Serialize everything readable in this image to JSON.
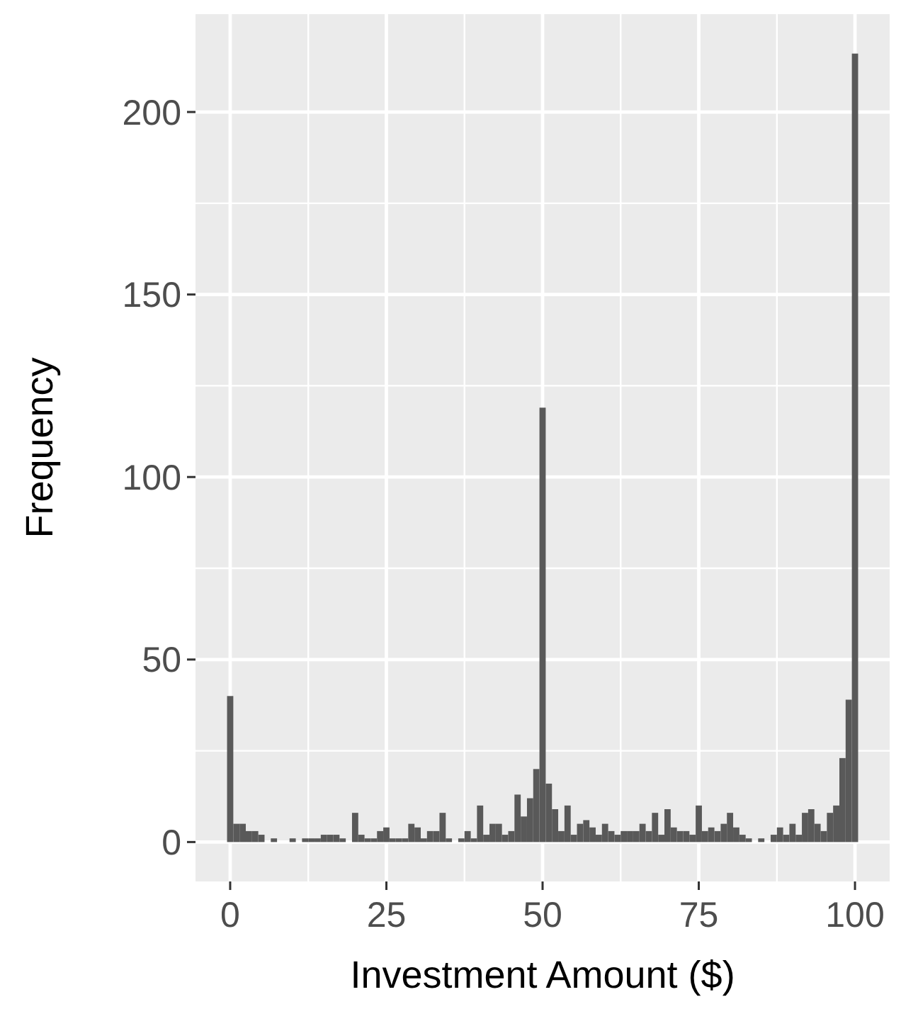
{
  "chart_data": {
    "type": "histogram",
    "xlabel": "Investment Amount ($)",
    "ylabel": "Frequency",
    "bins": [
      -0.5,
      0.5,
      1.5,
      2.5,
      3.5,
      4.5,
      5.5,
      6.5,
      7.5,
      8.5,
      9.5,
      10.5,
      11.5,
      12.5,
      13.5,
      14.5,
      15.5,
      16.5,
      17.5,
      18.5,
      19.5,
      20.5,
      21.5,
      22.5,
      23.5,
      24.5,
      25.5,
      26.5,
      27.5,
      28.5,
      29.5,
      30.5,
      31.5,
      32.5,
      33.5,
      34.5,
      35.5,
      36.5,
      37.5,
      38.5,
      39.5,
      40.5,
      41.5,
      42.5,
      43.5,
      44.5,
      45.5,
      46.5,
      47.5,
      48.5,
      49.5,
      50.5,
      51.5,
      52.5,
      53.5,
      54.5,
      55.5,
      56.5,
      57.5,
      58.5,
      59.5,
      60.5,
      61.5,
      62.5,
      63.5,
      64.5,
      65.5,
      66.5,
      67.5,
      68.5,
      69.5,
      70.5,
      71.5,
      72.5,
      73.5,
      74.5,
      75.5,
      76.5,
      77.5,
      78.5,
      79.5,
      80.5,
      81.5,
      82.5,
      83.5,
      84.5,
      85.5,
      86.5,
      87.5,
      88.5,
      89.5,
      90.5,
      91.5,
      92.5,
      93.5,
      94.5,
      95.5,
      96.5,
      97.5,
      98.5,
      99.5,
      100.5
    ],
    "values": [
      40,
      5,
      5,
      3,
      3,
      2,
      0,
      1,
      0,
      0,
      1,
      0,
      1,
      1,
      1,
      2,
      2,
      2,
      1,
      0,
      8,
      2,
      1,
      1,
      3,
      4,
      1,
      1,
      1,
      5,
      4,
      1,
      3,
      3,
      8,
      1,
      0,
      1,
      3,
      1,
      10,
      2,
      5,
      5,
      2,
      3,
      13,
      7,
      12,
      20,
      119,
      16,
      9,
      3,
      10,
      2,
      5,
      6,
      4,
      2,
      5,
      3,
      2,
      3,
      3,
      3,
      5,
      3,
      8,
      2,
      9,
      4,
      3,
      3,
      2,
      10,
      3,
      4,
      3,
      5,
      8,
      4,
      2,
      1,
      0,
      1,
      0,
      2,
      4,
      2,
      5,
      2,
      8,
      9,
      5,
      3,
      8,
      10,
      23,
      39,
      216
    ],
    "color": "#595959",
    "xlim": [
      -5.55,
      105.55
    ],
    "xticks": [
      0,
      25,
      50,
      75,
      100
    ],
    "ylim": [
      -10.8,
      226.8
    ],
    "yticks": [
      0,
      50,
      100,
      150,
      200
    ],
    "grid": true
  }
}
